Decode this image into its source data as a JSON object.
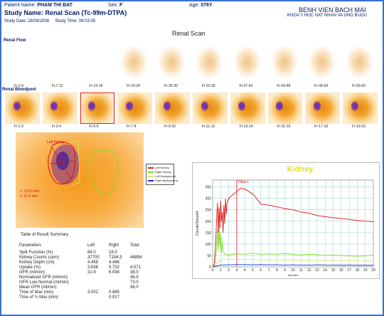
{
  "header": {
    "patient_label": "Patient Name:",
    "patient_name": "PHAM THI BAT",
    "sex_label": "Sex:",
    "sex": "F",
    "age_label": "Age:",
    "age": "076Y",
    "study_name_label": "Study Name:",
    "study_name": "Renal Scan (Tc-99m-DTPA)",
    "study_date_label": "Study Date:",
    "study_date": "28/08/2008",
    "study_time_label": "Study Time:",
    "study_time": "08:03:35",
    "hospital": "BENH VIEN BACH MAI",
    "department": "KHOA Y HOC HAT NHAN VA UNG BUOU",
    "report_title": "Renal Scan"
  },
  "renal_flow": {
    "label": "Renal Flow",
    "frames": [
      "Fr:1-6",
      "Fr:7-12",
      "Fr:13-18",
      "Fr:19-24",
      "Fr:25-30",
      "Fr:31-36",
      "Fr:37-42",
      "Fr:43-48",
      "Fr:49-54",
      "Fr:55-60"
    ]
  },
  "renal_bloodpool": {
    "label": "Renal Bloodpool",
    "frames": [
      "Fr:1-2",
      "Fr:3-4",
      "Fr:5-6",
      "Fr:7-8",
      "Fr:9-10",
      "Fr:11-12",
      "Fr:13-14",
      "Fr:15-16",
      "Fr:17-18",
      "Fr:19-20"
    ],
    "selected_index": 2
  },
  "roi_image": {
    "left_kidney_label": "Left Kidney",
    "measure_1": "1: 113.2 mm.",
    "measure_2": "2: 51.5 mm."
  },
  "legend": {
    "items": [
      {
        "label": "Left Kidney",
        "color": "#e01818"
      },
      {
        "label": "Right Kidney",
        "color": "#7ee020"
      },
      {
        "label": "Left Background",
        "color": "#d8e878"
      },
      {
        "label": "Right Background",
        "color": "#1a2ad8"
      }
    ]
  },
  "results": {
    "title": "Table of Result Summary",
    "columns": [
      "Parameters",
      "Left",
      "Right",
      "Total"
    ],
    "rows": [
      [
        "Split Function (%)",
        "84.0",
        "16.0",
        ""
      ],
      [
        "Kidney Counts (cpm)",
        "37700",
        "7194.3",
        "44894"
      ],
      [
        "Kidney Depth (cm)",
        "4.459",
        "4.486",
        ""
      ],
      [
        "Uptake (%)",
        "3.838",
        "0.732",
        "4.571"
      ],
      [
        "GFR (ml/min)",
        "31.9",
        "6.094",
        "38.0"
      ],
      [
        "Normalized GFR (ml/min)",
        "",
        "",
        "46.5"
      ],
      [
        "GFR Low Normal (ml/min)",
        "",
        "",
        "73.0"
      ],
      [
        "Mean GFR (ml/min)",
        "",
        "",
        "96.0"
      ],
      [
        "Time of Max (min)",
        "3.002",
        "0.885",
        ""
      ],
      [
        "Time of ½ Max (min)",
        "",
        "0.917",
        ""
      ]
    ]
  },
  "chart_data": {
    "type": "line",
    "title": "Kidney",
    "xlabel": "Minutes",
    "ylabel": "Counts/Second",
    "xlim": [
      0,
      20
    ],
    "ylim": [
      0,
      380
    ],
    "xticks": [
      0,
      1,
      2,
      3,
      4,
      5,
      6,
      7,
      8,
      9,
      10,
      11,
      12,
      13,
      14,
      15,
      16,
      17,
      18,
      19,
      20
    ],
    "yticks": [
      0,
      50,
      100,
      150,
      200,
      250,
      300,
      350
    ],
    "tmax_label": "TMax-L",
    "tmax_x": 3.0,
    "grid": true,
    "series": [
      {
        "name": "Left Kidney",
        "color": "#e01818",
        "x": [
          0,
          0.2,
          0.4,
          0.5,
          0.6,
          0.7,
          0.8,
          0.9,
          1.0,
          1.1,
          1.2,
          1.3,
          1.4,
          1.5,
          1.6,
          1.7,
          1.8,
          2.0,
          2.5,
          3.0,
          3.5,
          4.0,
          4.5,
          5.0,
          6,
          7,
          8,
          9,
          10,
          11,
          12,
          13,
          14,
          15,
          16,
          17,
          18,
          19,
          20
        ],
        "y": [
          0,
          10,
          120,
          210,
          280,
          150,
          260,
          170,
          290,
          200,
          240,
          150,
          270,
          190,
          300,
          230,
          280,
          300,
          315,
          330,
          345,
          340,
          330,
          320,
          275,
          270,
          263,
          255,
          250,
          240,
          235,
          225,
          220,
          215,
          212,
          208,
          203,
          200,
          198
        ]
      },
      {
        "name": "Right Kidney",
        "color": "#7ee020",
        "x": [
          0,
          0.3,
          0.5,
          0.6,
          0.7,
          0.8,
          0.9,
          1.0,
          1.1,
          1.2,
          1.3,
          1.5,
          2,
          3,
          4,
          5,
          6,
          7,
          8,
          9,
          10,
          11,
          12,
          13,
          14,
          15,
          16,
          17,
          18,
          19,
          20
        ],
        "y": [
          0,
          20,
          80,
          160,
          70,
          180,
          90,
          150,
          60,
          110,
          70,
          55,
          52,
          58,
          55,
          60,
          55,
          57,
          55,
          58,
          55,
          52,
          55,
          53,
          50,
          52,
          50,
          48,
          46,
          48,
          52
        ]
      },
      {
        "name": "Left Background",
        "color": "#d8e878",
        "x": [
          0,
          1,
          2,
          3,
          4,
          5,
          6,
          7,
          8,
          9,
          10,
          11,
          12,
          13,
          14,
          15,
          16,
          17,
          18,
          19,
          20
        ],
        "y": [
          0,
          30,
          34,
          33,
          32,
          32,
          31,
          30,
          31,
          30,
          30,
          29,
          30,
          29,
          28,
          29,
          28,
          28,
          27,
          28,
          27
        ]
      },
      {
        "name": "Right Background",
        "color": "#1a2ad8",
        "x": [
          0,
          1,
          2,
          3,
          4,
          5,
          6,
          7,
          8,
          9,
          10,
          11,
          12,
          13,
          14,
          15,
          16,
          17,
          18,
          19,
          20
        ],
        "y": [
          0,
          8,
          9,
          10,
          10,
          9,
          10,
          9,
          9,
          8,
          9,
          8,
          8,
          9,
          8,
          8,
          7,
          8,
          7,
          7,
          7
        ]
      }
    ]
  }
}
